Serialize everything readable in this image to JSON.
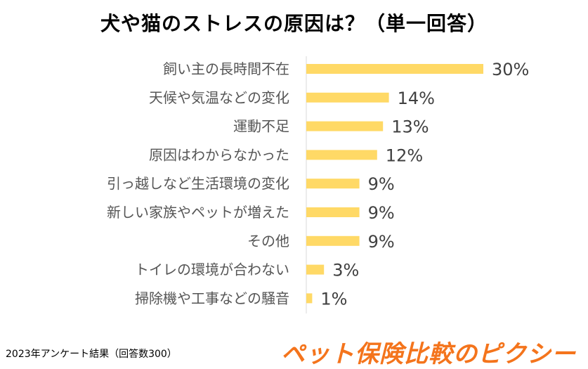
{
  "title": "犬や猫のストレスの原因は？（単一回答）",
  "footnote": "2023年アンケート結果（回答数300）",
  "logo_text": "ペット保険比較のピクシー",
  "colors": {
    "bar": "#FFD966",
    "logo": "#F4741C"
  },
  "chart_data": {
    "type": "bar",
    "orientation": "horizontal",
    "title": "犬や猫のストレスの原因は？（単一回答）",
    "categories": [
      "飼い主の長時間不在",
      "天候や気温などの変化",
      "運動不足",
      "原因はわからなかった",
      "引っ越しなど生活環境の変化",
      "新しい家族やペットが増えた",
      "その他",
      "トイレの環境が合わない",
      "掃除機や工事などの騒音"
    ],
    "values": [
      30,
      14,
      13,
      12,
      9,
      9,
      9,
      3,
      1
    ],
    "value_labels": [
      "30%",
      "14%",
      "13%",
      "12%",
      "9%",
      "9%",
      "9%",
      "3%",
      "1%"
    ],
    "unit": "%",
    "xlim": [
      0,
      32
    ],
    "grid": false,
    "legend": false
  }
}
